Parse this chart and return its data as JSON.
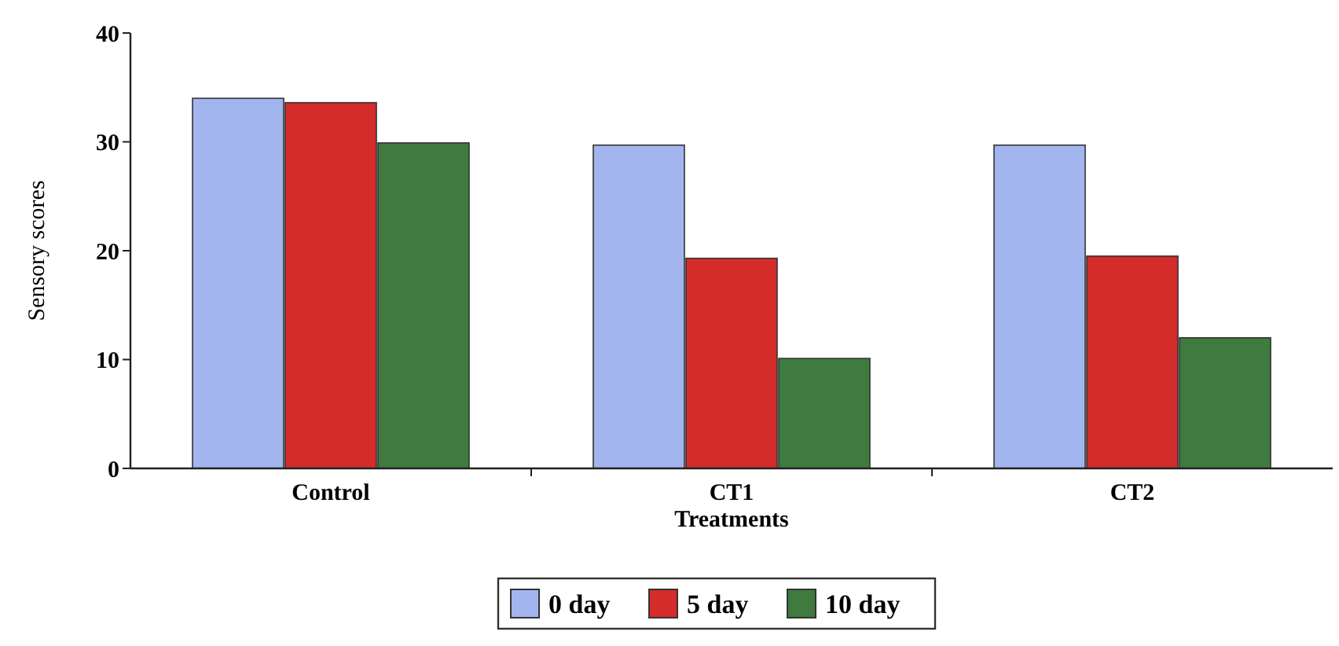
{
  "chart_data": {
    "type": "bar",
    "xlabel": "Treatments",
    "ylabel": "Sensory scores",
    "categories": [
      "Control",
      "CT1",
      "CT2"
    ],
    "series": [
      {
        "name": "0 day",
        "color": "#a3b5ee",
        "values": [
          34,
          29.7,
          29.7
        ]
      },
      {
        "name": "5 day",
        "color": "#d42b2b",
        "values": [
          33.6,
          19.3,
          19.5
        ]
      },
      {
        "name": "10 day",
        "color": "#3f7a3f",
        "values": [
          29.9,
          10.1,
          12
        ]
      }
    ],
    "ylim": [
      0,
      40
    ],
    "yticks": [
      0,
      10,
      20,
      30,
      40
    ],
    "grid": false,
    "legend": "bottom"
  }
}
